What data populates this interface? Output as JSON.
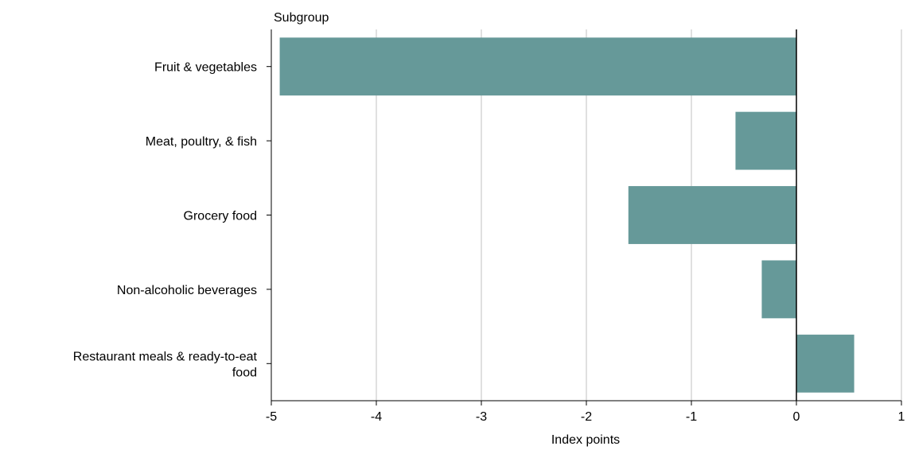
{
  "chart_data": {
    "type": "bar",
    "orientation": "horizontal",
    "title": "",
    "ylabel": "Subgroup",
    "xlabel": "Index points",
    "categories": [
      "Fruit & vegetables",
      "Meat, poultry, & fish",
      "Grocery food",
      "Non-alcoholic beverages",
      "Restaurant meals & ready-to-eat food"
    ],
    "category_label_lines": [
      [
        "Fruit & vegetables"
      ],
      [
        "Meat, poultry, & fish"
      ],
      [
        "Grocery food"
      ],
      [
        "Non-alcoholic beverages"
      ],
      [
        "Restaurant meals & ready-to-eat",
        "food"
      ]
    ],
    "values": [
      -4.92,
      -0.58,
      -1.6,
      -0.33,
      0.55
    ],
    "xlim": [
      -5,
      1
    ],
    "xticks": [
      -5,
      -4,
      -3,
      -2,
      -1,
      0,
      1
    ],
    "xtick_labels": [
      "-5",
      "-4",
      "-3",
      "-2",
      "-1",
      "0",
      "1"
    ],
    "grid": "vertical",
    "legend": "none",
    "colors": {
      "bar": "#669999",
      "grid": "#c0c0c0",
      "axis": "#000000"
    }
  }
}
